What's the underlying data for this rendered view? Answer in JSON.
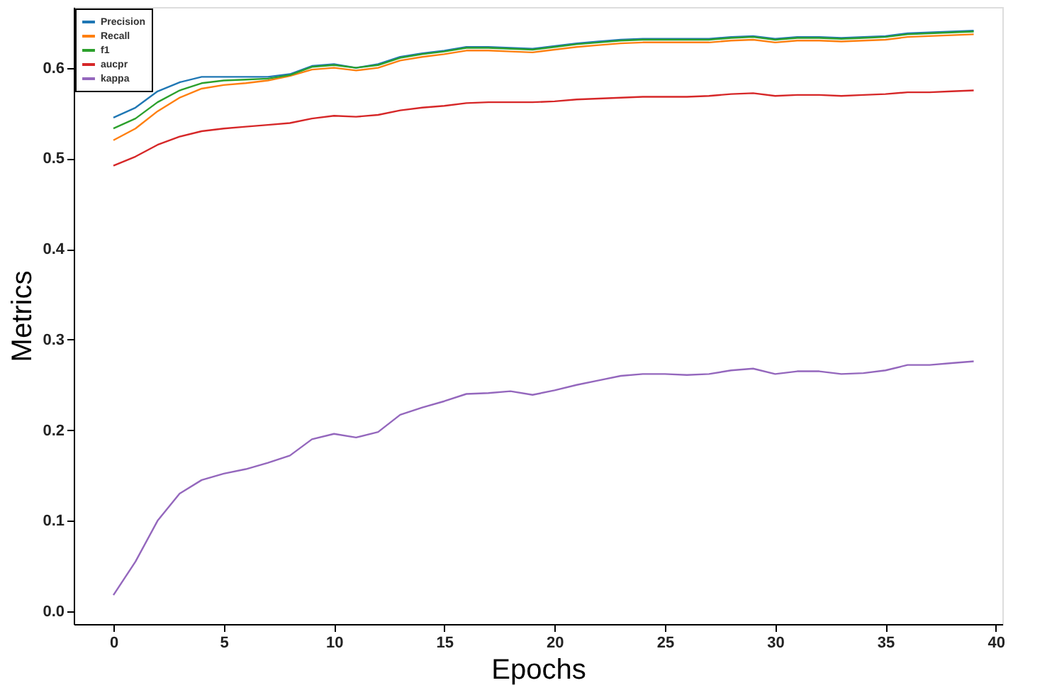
{
  "chart_data": {
    "type": "line",
    "xlabel": "Epochs",
    "ylabel": "Metrics",
    "x": [
      0,
      1,
      2,
      3,
      4,
      5,
      6,
      7,
      8,
      9,
      10,
      11,
      12,
      13,
      14,
      15,
      16,
      17,
      18,
      19,
      20,
      21,
      22,
      23,
      24,
      25,
      26,
      27,
      28,
      29,
      30,
      31,
      32,
      33,
      34,
      35,
      36,
      37,
      38,
      39
    ],
    "series": [
      {
        "name": "Precision",
        "color": "#1f77b4",
        "values": [
          0.545,
          0.556,
          0.574,
          0.584,
          0.59,
          0.59,
          0.59,
          0.59,
          0.593,
          0.602,
          0.604,
          0.6,
          0.604,
          0.612,
          0.616,
          0.619,
          0.623,
          0.623,
          0.622,
          0.621,
          0.624,
          0.627,
          0.629,
          0.631,
          0.632,
          0.632,
          0.632,
          0.632,
          0.634,
          0.635,
          0.632,
          0.634,
          0.634,
          0.633,
          0.634,
          0.635,
          0.638,
          0.639,
          0.64,
          0.641
        ]
      },
      {
        "name": "Recall",
        "color": "#ff7f0e",
        "values": [
          0.52,
          0.533,
          0.552,
          0.567,
          0.577,
          0.581,
          0.583,
          0.586,
          0.591,
          0.598,
          0.6,
          0.597,
          0.6,
          0.608,
          0.612,
          0.615,
          0.619,
          0.619,
          0.618,
          0.617,
          0.62,
          0.623,
          0.625,
          0.627,
          0.628,
          0.628,
          0.628,
          0.628,
          0.63,
          0.631,
          0.628,
          0.63,
          0.63,
          0.629,
          0.63,
          0.631,
          0.634,
          0.635,
          0.636,
          0.637
        ]
      },
      {
        "name": "f1",
        "color": "#2ca02c",
        "values": [
          0.533,
          0.544,
          0.562,
          0.575,
          0.583,
          0.586,
          0.587,
          0.588,
          0.592,
          0.601,
          0.603,
          0.6,
          0.603,
          0.611,
          0.615,
          0.618,
          0.622,
          0.622,
          0.621,
          0.62,
          0.623,
          0.626,
          0.628,
          0.63,
          0.631,
          0.631,
          0.631,
          0.631,
          0.633,
          0.634,
          0.631,
          0.633,
          0.633,
          0.632,
          0.633,
          0.634,
          0.637,
          0.638,
          0.639,
          0.64
        ]
      },
      {
        "name": "aucpr",
        "color": "#d62728",
        "values": [
          0.492,
          0.502,
          0.515,
          0.524,
          0.53,
          0.533,
          0.535,
          0.537,
          0.539,
          0.544,
          0.547,
          0.546,
          0.548,
          0.553,
          0.556,
          0.558,
          0.561,
          0.562,
          0.562,
          0.562,
          0.563,
          0.565,
          0.566,
          0.567,
          0.568,
          0.568,
          0.568,
          0.569,
          0.571,
          0.572,
          0.569,
          0.57,
          0.57,
          0.569,
          0.57,
          0.571,
          0.573,
          0.573,
          0.574,
          0.575
        ]
      },
      {
        "name": "kappa",
        "color": "#9467bd",
        "values": [
          0.018,
          0.055,
          0.1,
          0.13,
          0.145,
          0.152,
          0.157,
          0.164,
          0.172,
          0.19,
          0.196,
          0.192,
          0.198,
          0.217,
          0.225,
          0.232,
          0.24,
          0.241,
          0.243,
          0.239,
          0.244,
          0.25,
          0.255,
          0.26,
          0.262,
          0.262,
          0.261,
          0.262,
          0.266,
          0.268,
          0.262,
          0.265,
          0.265,
          0.262,
          0.263,
          0.266,
          0.272,
          0.272,
          0.274,
          0.276
        ]
      }
    ],
    "xlim": [
      -1.8,
      40.3
    ],
    "xticks": [
      0,
      5,
      10,
      15,
      20,
      25,
      30,
      35,
      40
    ],
    "ylim": [
      -0.014,
      0.667
    ],
    "yticks": [
      {
        "value": 0,
        "label": "0.0"
      },
      0.1,
      0.2,
      0.3,
      0.4,
      0.5,
      0.6
    ],
    "grid": false,
    "legend": "top left",
    "marker": "none",
    "line_style": "solid"
  }
}
